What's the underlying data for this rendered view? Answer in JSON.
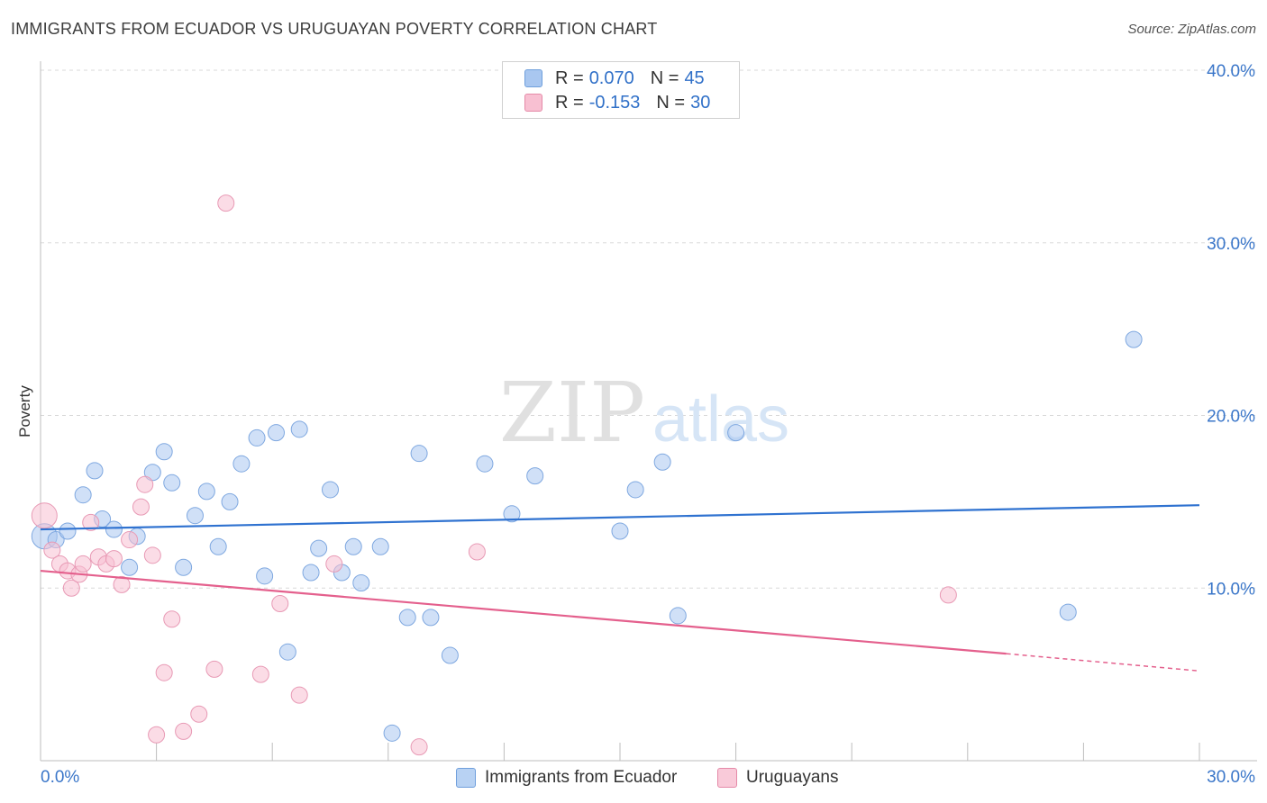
{
  "title": "IMMIGRANTS FROM ECUADOR VS URUGUAYAN POVERTY CORRELATION CHART",
  "source": "Source: ZipAtlas.com",
  "watermark": {
    "zip": "ZIP",
    "atlas": "atlas"
  },
  "legend_stats": [
    {
      "r_label": "R =",
      "r_value": "0.070",
      "n_label": "N =",
      "n_value": "45",
      "color": "#a9c7f0",
      "border": "#6f9fdc"
    },
    {
      "r_label": "R =",
      "r_value": "-0.153",
      "n_label": "N =",
      "n_value": "30",
      "color": "#f8c0d2",
      "border": "#e58aa8"
    }
  ],
  "bottom_legend": [
    {
      "label": "Immigrants from Ecuador",
      "color": "#b8d2f3",
      "border": "#6f9fdc"
    },
    {
      "label": "Uruguayans",
      "color": "#f9cad9",
      "border": "#e58aa8"
    }
  ],
  "colors": {
    "blue_line": "#2f72d0",
    "pink_line": "#e4608d",
    "axis_label": "#3a76c9",
    "grid": "#d8d8d8"
  },
  "chart_data": {
    "type": "scatter",
    "title": "IMMIGRANTS FROM ECUADOR VS URUGUAYAN POVERTY CORRELATION CHART",
    "xlabel": "",
    "ylabel": "Poverty",
    "xlim": [
      0,
      30
    ],
    "ylim": [
      0,
      40
    ],
    "x_tick_labels": [
      "0.0%",
      "30.0%"
    ],
    "y_ticks": [
      10,
      20,
      30,
      40
    ],
    "y_tick_labels": [
      "10.0%",
      "20.0%",
      "30.0%",
      "40.0%"
    ],
    "grid": true,
    "legend_position": "top-center",
    "series": [
      {
        "name": "Immigrants from Ecuador",
        "color": "#a9c7f0",
        "trend": {
          "x": [
            0,
            30
          ],
          "y": [
            13.4,
            14.8
          ]
        },
        "points": [
          [
            0.1,
            13.0
          ],
          [
            0.4,
            12.8
          ],
          [
            0.7,
            13.3
          ],
          [
            1.1,
            15.4
          ],
          [
            1.4,
            16.8
          ],
          [
            1.6,
            14.0
          ],
          [
            1.9,
            13.4
          ],
          [
            2.3,
            11.2
          ],
          [
            2.5,
            13.0
          ],
          [
            2.9,
            16.7
          ],
          [
            3.2,
            17.9
          ],
          [
            3.4,
            16.1
          ],
          [
            3.7,
            11.2
          ],
          [
            4.0,
            14.2
          ],
          [
            4.3,
            15.6
          ],
          [
            4.6,
            12.4
          ],
          [
            4.9,
            15.0
          ],
          [
            5.2,
            17.2
          ],
          [
            5.6,
            18.7
          ],
          [
            5.8,
            10.7
          ],
          [
            6.1,
            19.0
          ],
          [
            6.4,
            6.3
          ],
          [
            6.7,
            19.2
          ],
          [
            7.0,
            10.9
          ],
          [
            7.2,
            12.3
          ],
          [
            7.5,
            15.7
          ],
          [
            7.8,
            10.9
          ],
          [
            8.1,
            12.4
          ],
          [
            8.3,
            10.3
          ],
          [
            8.8,
            12.4
          ],
          [
            9.1,
            1.6
          ],
          [
            9.5,
            8.3
          ],
          [
            9.8,
            17.8
          ],
          [
            10.1,
            8.3
          ],
          [
            10.6,
            6.1
          ],
          [
            11.5,
            17.2
          ],
          [
            12.2,
            14.3
          ],
          [
            12.8,
            16.5
          ],
          [
            15.0,
            13.3
          ],
          [
            15.4,
            15.7
          ],
          [
            16.1,
            17.3
          ],
          [
            16.5,
            8.4
          ],
          [
            18.0,
            19.0
          ],
          [
            26.6,
            8.6
          ],
          [
            28.3,
            24.4
          ]
        ]
      },
      {
        "name": "Uruguayans",
        "color": "#f8c0d2",
        "trend": {
          "x": [
            0,
            25
          ],
          "y": [
            11.0,
            6.2
          ],
          "dashed_to": [
            30,
            5.2
          ]
        },
        "points": [
          [
            0.1,
            14.2
          ],
          [
            0.3,
            12.2
          ],
          [
            0.5,
            11.4
          ],
          [
            0.7,
            11.0
          ],
          [
            0.8,
            10.0
          ],
          [
            1.0,
            10.8
          ],
          [
            1.1,
            11.4
          ],
          [
            1.3,
            13.8
          ],
          [
            1.5,
            11.8
          ],
          [
            1.7,
            11.4
          ],
          [
            1.9,
            11.7
          ],
          [
            2.1,
            10.2
          ],
          [
            2.3,
            12.8
          ],
          [
            2.6,
            14.7
          ],
          [
            2.7,
            16.0
          ],
          [
            2.9,
            11.9
          ],
          [
            3.0,
            1.5
          ],
          [
            3.2,
            5.1
          ],
          [
            3.4,
            8.2
          ],
          [
            3.7,
            1.7
          ],
          [
            4.1,
            2.7
          ],
          [
            4.5,
            5.3
          ],
          [
            4.8,
            32.3
          ],
          [
            5.7,
            5.0
          ],
          [
            6.2,
            9.1
          ],
          [
            6.7,
            3.8
          ],
          [
            7.6,
            11.4
          ],
          [
            9.8,
            0.8
          ],
          [
            11.3,
            12.1
          ],
          [
            23.5,
            9.6
          ]
        ]
      }
    ]
  }
}
